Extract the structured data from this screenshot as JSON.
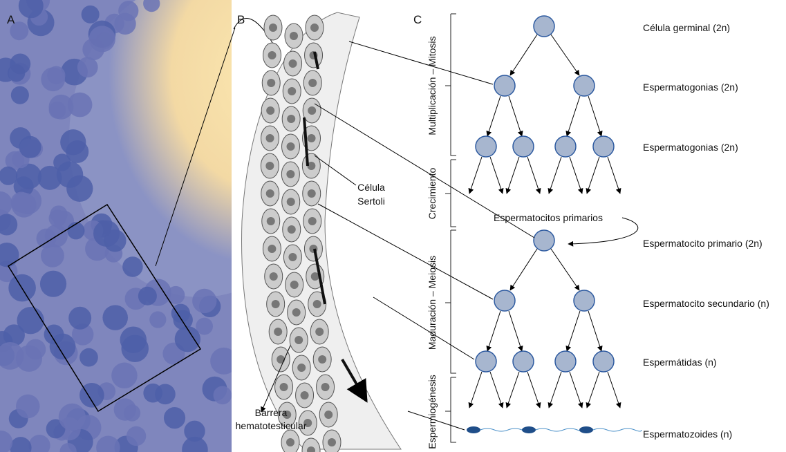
{
  "panels": {
    "a": "A",
    "b": "B",
    "c": "C"
  },
  "annotations": {
    "sertoli": [
      "Célula",
      "Sertoli"
    ],
    "barrier": [
      "Barrera",
      "hematotesticular"
    ],
    "primary_group": "Espermatocitos primarios"
  },
  "stages": [
    "Multiplicación – Mitosis",
    "Crecimiento",
    "Maduración – Meiosis",
    "Espermiogénesis"
  ],
  "levels": [
    "Célula germinal (2n)",
    "Espermatogonias (2n)",
    "Espermatogonias (2n)",
    "Espermatocito primario (2n)",
    "Espermatocito secundario (n)",
    "Espermátidas (n)",
    "Espermatozoides (n)"
  ]
}
